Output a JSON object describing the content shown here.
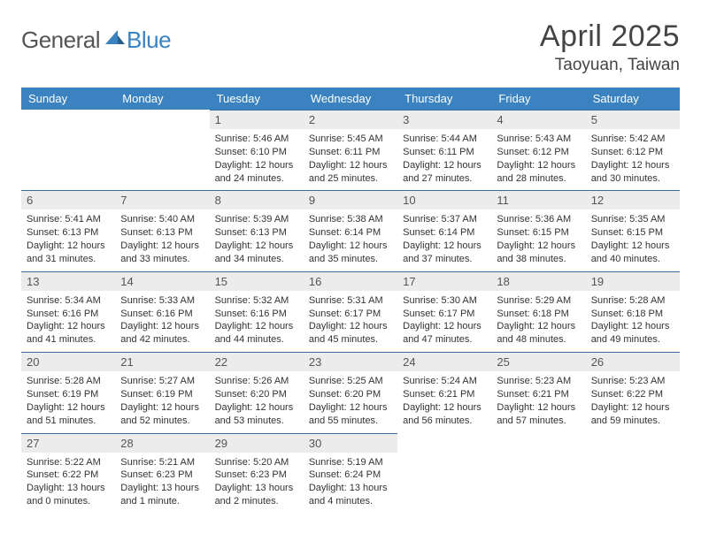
{
  "brand": {
    "part1": "General",
    "part2": "Blue"
  },
  "title": {
    "month": "April 2025",
    "location": "Taoyuan, Taiwan"
  },
  "colors": {
    "header_bg": "#3b83c0",
    "header_text": "#ffffff",
    "daynum_bg": "#ececec",
    "row_divider": "#3b6ea0",
    "text": "#333333",
    "logo_gray": "#555555",
    "logo_blue": "#3b83c0",
    "page_bg": "#ffffff"
  },
  "typography": {
    "month_fontsize": 34,
    "location_fontsize": 19,
    "header_fontsize": 13,
    "daynum_fontsize": 13,
    "details_fontsize": 11
  },
  "weekdays": [
    "Sunday",
    "Monday",
    "Tuesday",
    "Wednesday",
    "Thursday",
    "Friday",
    "Saturday"
  ],
  "weeks": [
    [
      null,
      null,
      {
        "n": "1",
        "sunrise": "Sunrise: 5:46 AM",
        "sunset": "Sunset: 6:10 PM",
        "daylight": "Daylight: 12 hours and 24 minutes."
      },
      {
        "n": "2",
        "sunrise": "Sunrise: 5:45 AM",
        "sunset": "Sunset: 6:11 PM",
        "daylight": "Daylight: 12 hours and 25 minutes."
      },
      {
        "n": "3",
        "sunrise": "Sunrise: 5:44 AM",
        "sunset": "Sunset: 6:11 PM",
        "daylight": "Daylight: 12 hours and 27 minutes."
      },
      {
        "n": "4",
        "sunrise": "Sunrise: 5:43 AM",
        "sunset": "Sunset: 6:12 PM",
        "daylight": "Daylight: 12 hours and 28 minutes."
      },
      {
        "n": "5",
        "sunrise": "Sunrise: 5:42 AM",
        "sunset": "Sunset: 6:12 PM",
        "daylight": "Daylight: 12 hours and 30 minutes."
      }
    ],
    [
      {
        "n": "6",
        "sunrise": "Sunrise: 5:41 AM",
        "sunset": "Sunset: 6:13 PM",
        "daylight": "Daylight: 12 hours and 31 minutes."
      },
      {
        "n": "7",
        "sunrise": "Sunrise: 5:40 AM",
        "sunset": "Sunset: 6:13 PM",
        "daylight": "Daylight: 12 hours and 33 minutes."
      },
      {
        "n": "8",
        "sunrise": "Sunrise: 5:39 AM",
        "sunset": "Sunset: 6:13 PM",
        "daylight": "Daylight: 12 hours and 34 minutes."
      },
      {
        "n": "9",
        "sunrise": "Sunrise: 5:38 AM",
        "sunset": "Sunset: 6:14 PM",
        "daylight": "Daylight: 12 hours and 35 minutes."
      },
      {
        "n": "10",
        "sunrise": "Sunrise: 5:37 AM",
        "sunset": "Sunset: 6:14 PM",
        "daylight": "Daylight: 12 hours and 37 minutes."
      },
      {
        "n": "11",
        "sunrise": "Sunrise: 5:36 AM",
        "sunset": "Sunset: 6:15 PM",
        "daylight": "Daylight: 12 hours and 38 minutes."
      },
      {
        "n": "12",
        "sunrise": "Sunrise: 5:35 AM",
        "sunset": "Sunset: 6:15 PM",
        "daylight": "Daylight: 12 hours and 40 minutes."
      }
    ],
    [
      {
        "n": "13",
        "sunrise": "Sunrise: 5:34 AM",
        "sunset": "Sunset: 6:16 PM",
        "daylight": "Daylight: 12 hours and 41 minutes."
      },
      {
        "n": "14",
        "sunrise": "Sunrise: 5:33 AM",
        "sunset": "Sunset: 6:16 PM",
        "daylight": "Daylight: 12 hours and 42 minutes."
      },
      {
        "n": "15",
        "sunrise": "Sunrise: 5:32 AM",
        "sunset": "Sunset: 6:16 PM",
        "daylight": "Daylight: 12 hours and 44 minutes."
      },
      {
        "n": "16",
        "sunrise": "Sunrise: 5:31 AM",
        "sunset": "Sunset: 6:17 PM",
        "daylight": "Daylight: 12 hours and 45 minutes."
      },
      {
        "n": "17",
        "sunrise": "Sunrise: 5:30 AM",
        "sunset": "Sunset: 6:17 PM",
        "daylight": "Daylight: 12 hours and 47 minutes."
      },
      {
        "n": "18",
        "sunrise": "Sunrise: 5:29 AM",
        "sunset": "Sunset: 6:18 PM",
        "daylight": "Daylight: 12 hours and 48 minutes."
      },
      {
        "n": "19",
        "sunrise": "Sunrise: 5:28 AM",
        "sunset": "Sunset: 6:18 PM",
        "daylight": "Daylight: 12 hours and 49 minutes."
      }
    ],
    [
      {
        "n": "20",
        "sunrise": "Sunrise: 5:28 AM",
        "sunset": "Sunset: 6:19 PM",
        "daylight": "Daylight: 12 hours and 51 minutes."
      },
      {
        "n": "21",
        "sunrise": "Sunrise: 5:27 AM",
        "sunset": "Sunset: 6:19 PM",
        "daylight": "Daylight: 12 hours and 52 minutes."
      },
      {
        "n": "22",
        "sunrise": "Sunrise: 5:26 AM",
        "sunset": "Sunset: 6:20 PM",
        "daylight": "Daylight: 12 hours and 53 minutes."
      },
      {
        "n": "23",
        "sunrise": "Sunrise: 5:25 AM",
        "sunset": "Sunset: 6:20 PM",
        "daylight": "Daylight: 12 hours and 55 minutes."
      },
      {
        "n": "24",
        "sunrise": "Sunrise: 5:24 AM",
        "sunset": "Sunset: 6:21 PM",
        "daylight": "Daylight: 12 hours and 56 minutes."
      },
      {
        "n": "25",
        "sunrise": "Sunrise: 5:23 AM",
        "sunset": "Sunset: 6:21 PM",
        "daylight": "Daylight: 12 hours and 57 minutes."
      },
      {
        "n": "26",
        "sunrise": "Sunrise: 5:23 AM",
        "sunset": "Sunset: 6:22 PM",
        "daylight": "Daylight: 12 hours and 59 minutes."
      }
    ],
    [
      {
        "n": "27",
        "sunrise": "Sunrise: 5:22 AM",
        "sunset": "Sunset: 6:22 PM",
        "daylight": "Daylight: 13 hours and 0 minutes."
      },
      {
        "n": "28",
        "sunrise": "Sunrise: 5:21 AM",
        "sunset": "Sunset: 6:23 PM",
        "daylight": "Daylight: 13 hours and 1 minute."
      },
      {
        "n": "29",
        "sunrise": "Sunrise: 5:20 AM",
        "sunset": "Sunset: 6:23 PM",
        "daylight": "Daylight: 13 hours and 2 minutes."
      },
      {
        "n": "30",
        "sunrise": "Sunrise: 5:19 AM",
        "sunset": "Sunset: 6:24 PM",
        "daylight": "Daylight: 13 hours and 4 minutes."
      },
      null,
      null,
      null
    ]
  ]
}
